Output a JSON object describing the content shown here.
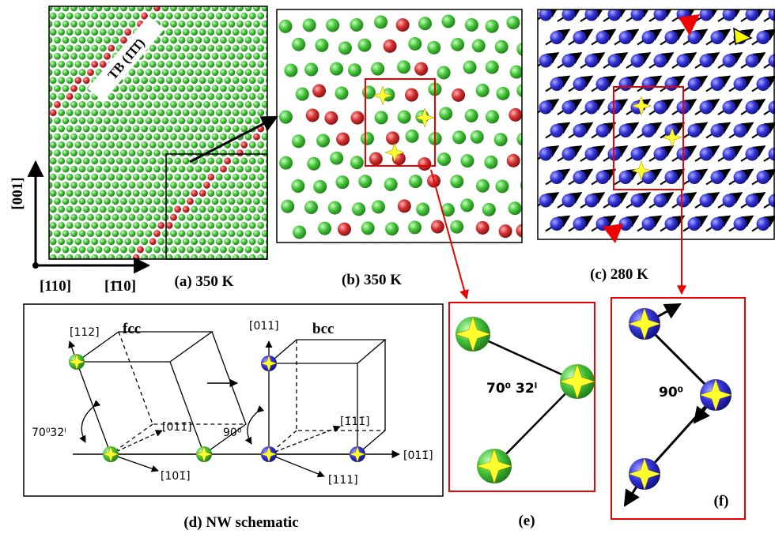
{
  "panels": {
    "a": {
      "tb_label": "TB (1̄1̄1̄)",
      "axis_vertical": "[001]",
      "axis_x1": "[110]",
      "axis_x2": "[1̄10]",
      "caption": "(a) 350 K"
    },
    "b": {
      "caption": "(b) 350 K"
    },
    "c": {
      "caption": "(c) 280 K"
    },
    "d": {
      "caption": "(d) NW schematic",
      "fcc": {
        "label": "fcc",
        "dir_up": "[112]",
        "dir_1": "[011̄]",
        "dir_2": "[101̄]",
        "angle": "70⁰32ˡ"
      },
      "bcc": {
        "label": "bcc",
        "dir_up": "[011]",
        "dir_1": "[1̄11̄]",
        "dir_2": "[111]",
        "dir_axis": "[011̄]",
        "angle": "90⁰"
      }
    },
    "e": {
      "caption": "(e)",
      "angle": "70⁰ 32ˡ"
    },
    "f": {
      "caption": "(f)",
      "angle": "90⁰"
    }
  }
}
